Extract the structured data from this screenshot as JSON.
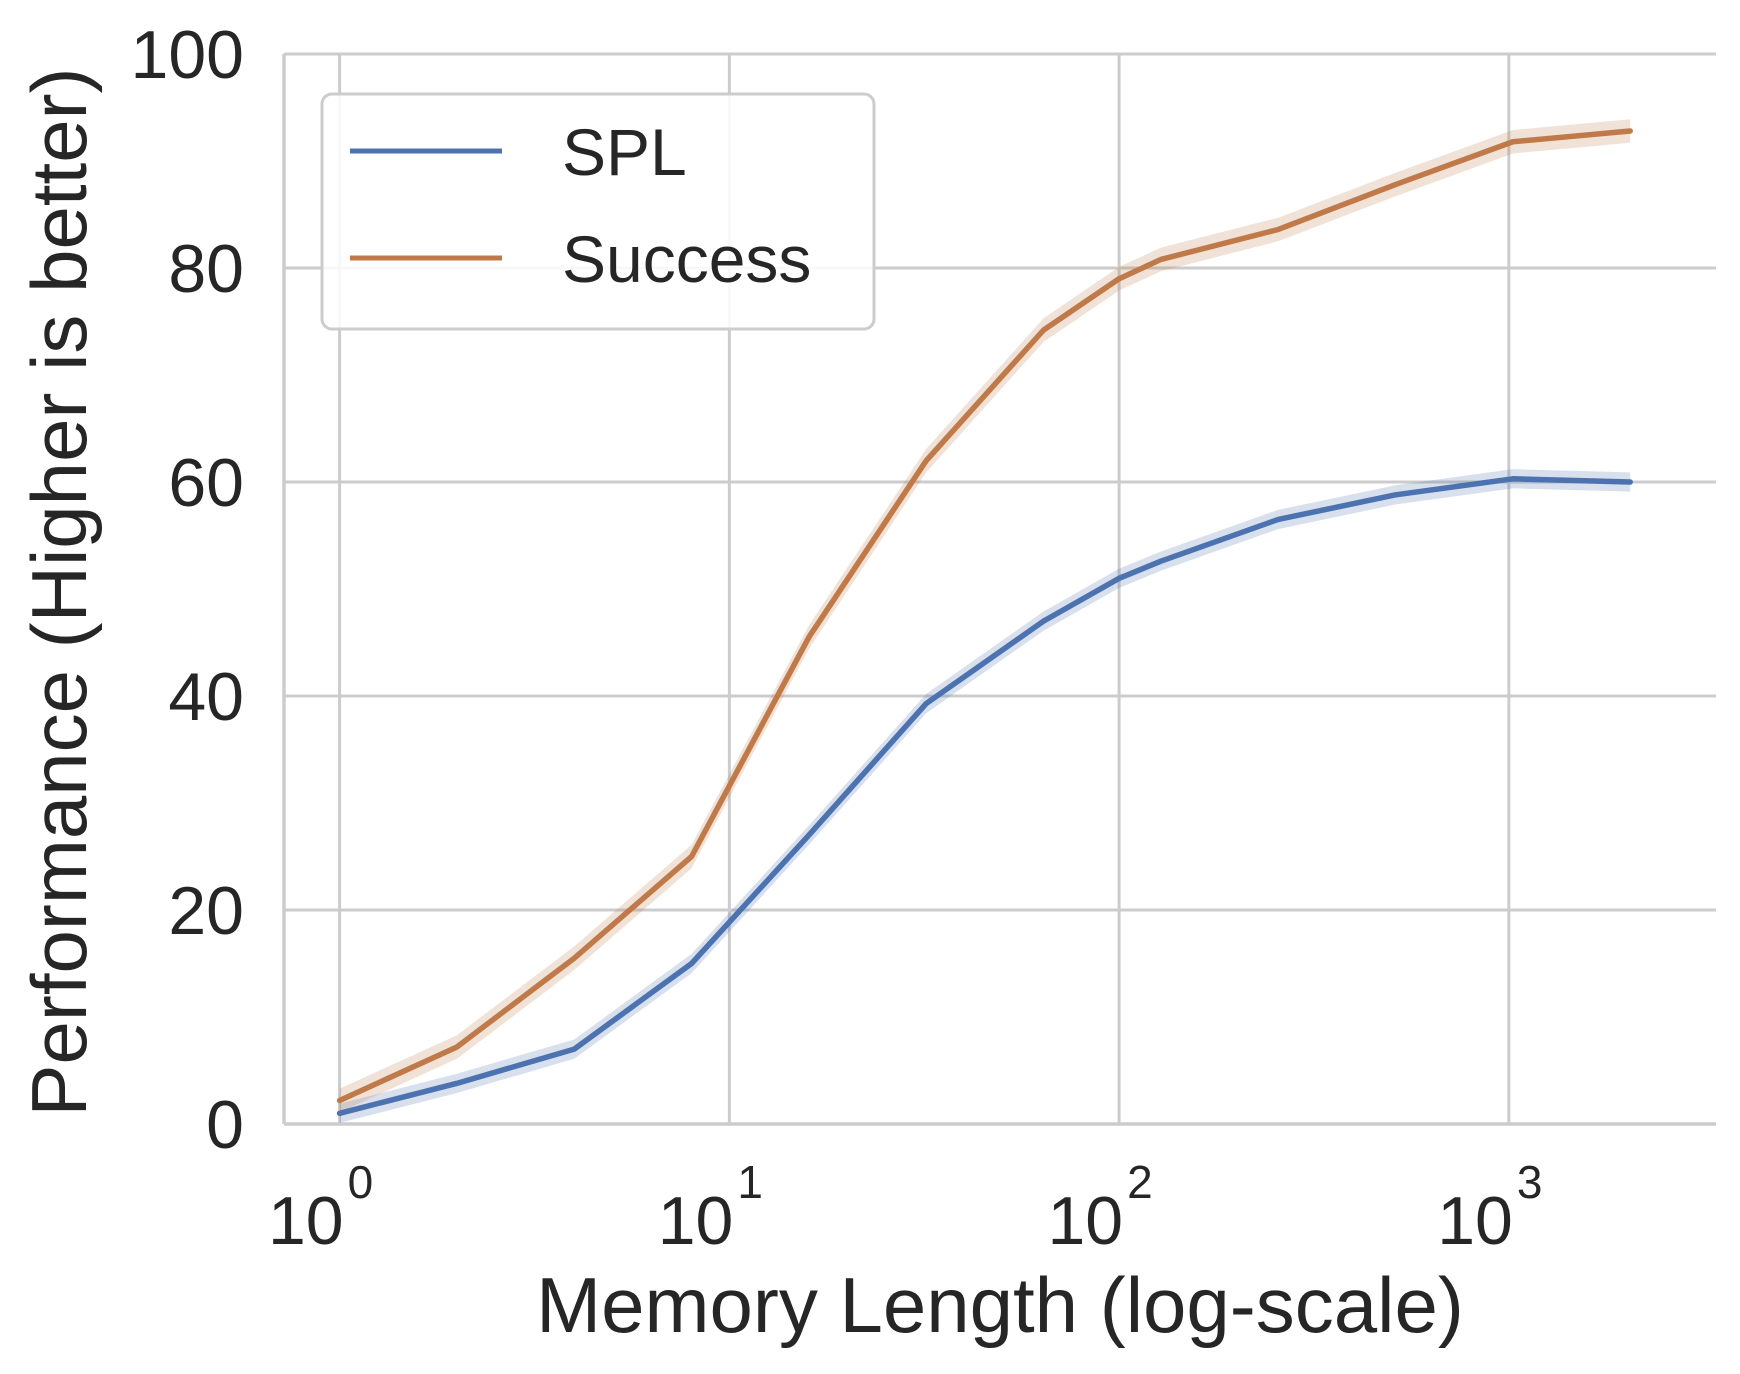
{
  "chart_data": {
    "type": "line",
    "xlabel": "Memory Length (log-scale)",
    "ylabel": "Performance (Higher is better)",
    "xscale": "log",
    "xlim": [
      0.72,
      3400
    ],
    "ylim": [
      0,
      100
    ],
    "x_ticks": [
      {
        "value": 1,
        "base": "10",
        "exp": "0"
      },
      {
        "value": 10,
        "base": "10",
        "exp": "1"
      },
      {
        "value": 100,
        "base": "10",
        "exp": "2"
      },
      {
        "value": 1000,
        "base": "10",
        "exp": "3"
      }
    ],
    "y_ticks": [
      {
        "value": 0,
        "label": "0"
      },
      {
        "value": 20,
        "label": "20"
      },
      {
        "value": 40,
        "label": "40"
      },
      {
        "value": 60,
        "label": "60"
      },
      {
        "value": 80,
        "label": "80"
      },
      {
        "value": 100,
        "label": "100"
      }
    ],
    "grid": true,
    "legend_position": "top-left",
    "x": [
      1,
      2,
      4,
      8,
      16,
      32,
      64,
      100,
      128,
      256,
      512,
      1024,
      2048
    ],
    "series": [
      {
        "name": "SPL",
        "color": "#4c72b0",
        "values": [
          1.0,
          3.8,
          7.0,
          15.0,
          27.0,
          39.3,
          47.0,
          51.0,
          52.6,
          56.5,
          58.8,
          60.3,
          60.0
        ],
        "ci": 0.9
      },
      {
        "name": "Success",
        "color": "#c07a4a",
        "values": [
          2.2,
          7.2,
          15.5,
          25.0,
          45.5,
          62.0,
          74.2,
          79.0,
          80.8,
          83.6,
          87.8,
          91.8,
          92.8
        ],
        "ci": 1.1
      }
    ]
  }
}
